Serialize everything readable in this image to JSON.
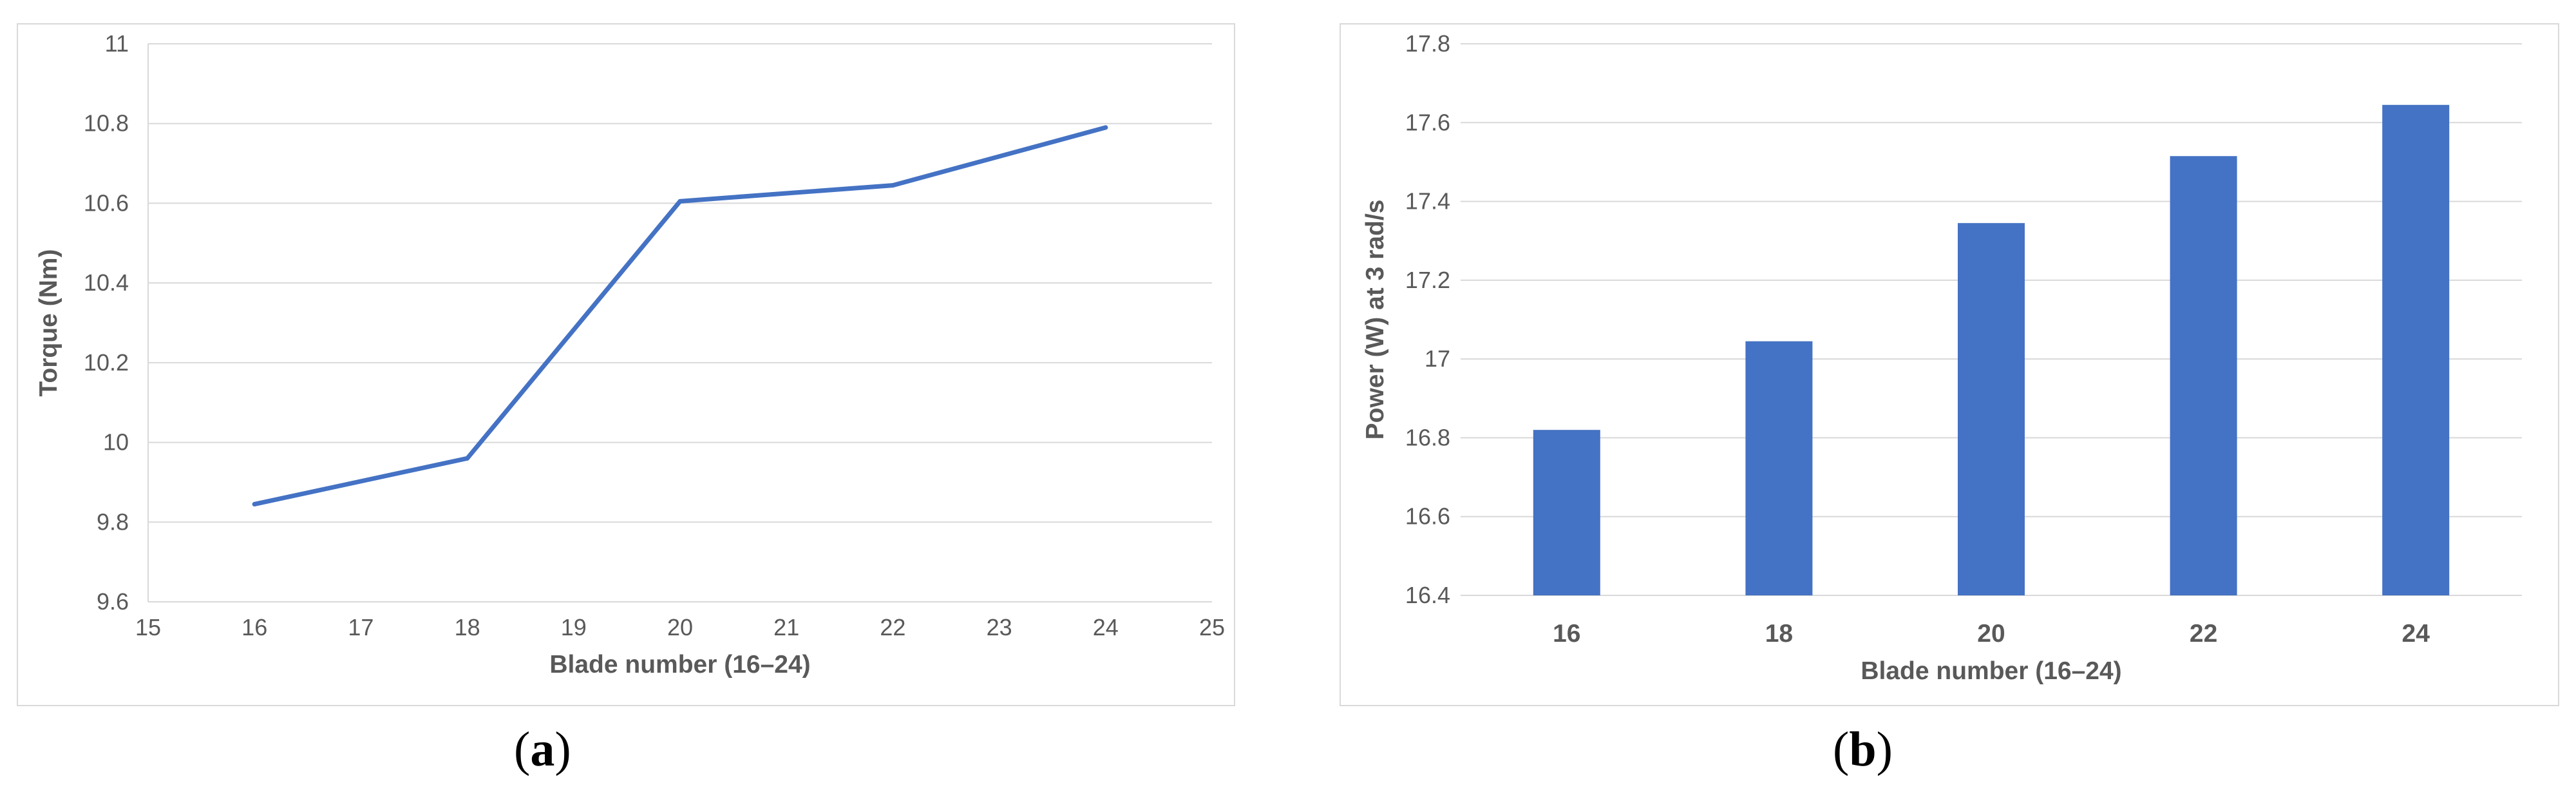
{
  "captions": [
    {
      "open": "(",
      "letter": "a",
      "close": ")"
    },
    {
      "open": "(",
      "letter": "b",
      "close": ")"
    }
  ],
  "chart_data": [
    {
      "type": "line",
      "xlabel": "Blade number (16–24)",
      "ylabel": "Torque (Nm)",
      "xlim": [
        15,
        25
      ],
      "ylim": [
        9.6,
        11
      ],
      "xticks": [
        "15",
        "16",
        "17",
        "18",
        "19",
        "20",
        "21",
        "22",
        "23",
        "24",
        "25"
      ],
      "yticks": [
        "9.6",
        "9.8",
        "10",
        "10.2",
        "10.4",
        "10.6",
        "10.8",
        "11"
      ],
      "grid": true,
      "color": "#4472c4",
      "x": [
        16,
        18,
        20,
        22,
        24
      ],
      "y": [
        9.845,
        9.96,
        10.605,
        10.645,
        10.79
      ]
    },
    {
      "type": "bar",
      "xlabel": "Blade number (16–24)",
      "ylabel": "Power (W)  at 3 rad/s",
      "categories": [
        "16",
        "18",
        "20",
        "22",
        "24"
      ],
      "values": [
        16.82,
        17.045,
        17.345,
        17.515,
        17.645
      ],
      "ylim": [
        16.4,
        17.8
      ],
      "yticks": [
        "16.4",
        "16.6",
        "16.8",
        "17",
        "17.2",
        "17.4",
        "17.6",
        "17.8"
      ],
      "grid": true,
      "color": "#4472c4"
    }
  ]
}
